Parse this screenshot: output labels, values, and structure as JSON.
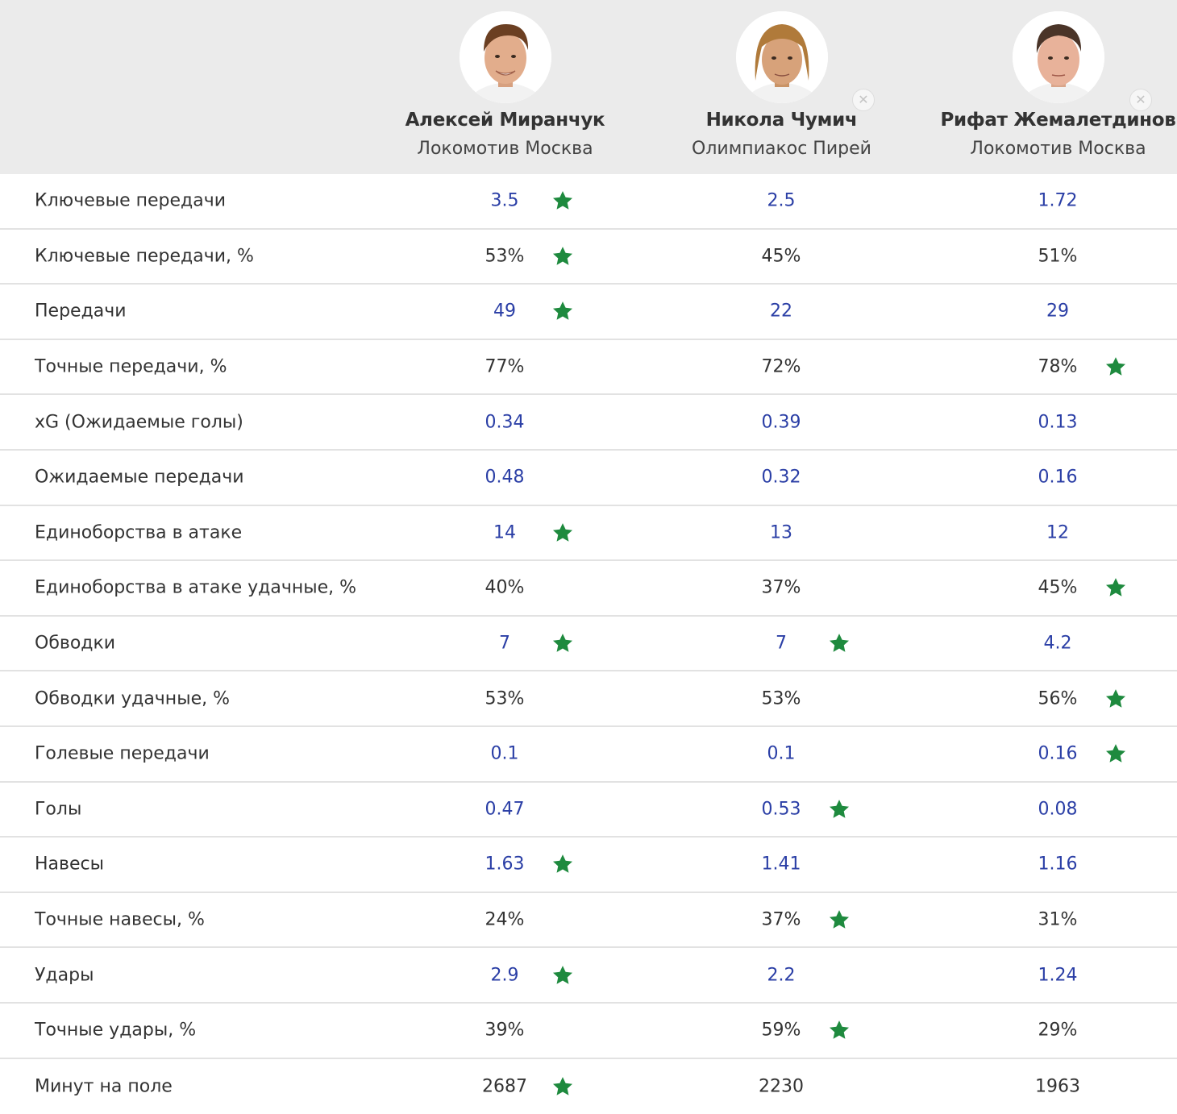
{
  "players": [
    {
      "name": "Алексей Миранчук",
      "team": "Локомотив Москва",
      "removable": false
    },
    {
      "name": "Никола Чумич",
      "team": "Олимпиакос Пирей",
      "removable": true
    },
    {
      "name": "Рифат Жемалетдинов",
      "team": "Локомотив Москва",
      "removable": true
    }
  ],
  "remove_icon_glyph": "✕",
  "colors": {
    "header_bg": "#ebebeb",
    "number_blue": "#2b3fa6",
    "star_green": "#1e8a3e",
    "divider": "#e2e2e2"
  },
  "rows": [
    {
      "label": "Ключевые передачи",
      "kind": "num",
      "values": [
        "3.5",
        "2.5",
        "1.72"
      ],
      "stars": [
        true,
        false,
        false
      ]
    },
    {
      "label": "Ключевые передачи, %",
      "kind": "pct",
      "values": [
        "53%",
        "45%",
        "51%"
      ],
      "stars": [
        true,
        false,
        false
      ]
    },
    {
      "label": "Передачи",
      "kind": "num",
      "values": [
        "49",
        "22",
        "29"
      ],
      "stars": [
        true,
        false,
        false
      ]
    },
    {
      "label": "Точные передачи, %",
      "kind": "pct",
      "values": [
        "77%",
        "72%",
        "78%"
      ],
      "stars": [
        false,
        false,
        true
      ]
    },
    {
      "label": "xG (Ожидаемые голы)",
      "kind": "num",
      "values": [
        "0.34",
        "0.39",
        "0.13"
      ],
      "stars": [
        false,
        false,
        false
      ]
    },
    {
      "label": "Ожидаемые передачи",
      "kind": "num",
      "values": [
        "0.48",
        "0.32",
        "0.16"
      ],
      "stars": [
        false,
        false,
        false
      ]
    },
    {
      "label": "Единоборства в атаке",
      "kind": "num",
      "values": [
        "14",
        "13",
        "12"
      ],
      "stars": [
        true,
        false,
        false
      ]
    },
    {
      "label": "Единоборства в атаке удачные, %",
      "kind": "pct",
      "values": [
        "40%",
        "37%",
        "45%"
      ],
      "stars": [
        false,
        false,
        true
      ]
    },
    {
      "label": "Обводки",
      "kind": "num",
      "values": [
        "7",
        "7",
        "4.2"
      ],
      "stars": [
        true,
        true,
        false
      ]
    },
    {
      "label": "Обводки удачные, %",
      "kind": "pct",
      "values": [
        "53%",
        "53%",
        "56%"
      ],
      "stars": [
        false,
        false,
        true
      ]
    },
    {
      "label": "Голевые передачи",
      "kind": "num",
      "values": [
        "0.1",
        "0.1",
        "0.16"
      ],
      "stars": [
        false,
        false,
        true
      ]
    },
    {
      "label": "Голы",
      "kind": "num",
      "values": [
        "0.47",
        "0.53",
        "0.08"
      ],
      "stars": [
        false,
        true,
        false
      ]
    },
    {
      "label": "Навесы",
      "kind": "num",
      "values": [
        "1.63",
        "1.41",
        "1.16"
      ],
      "stars": [
        true,
        false,
        false
      ]
    },
    {
      "label": "Точные навесы, %",
      "kind": "pct",
      "values": [
        "24%",
        "37%",
        "31%"
      ],
      "stars": [
        false,
        true,
        false
      ]
    },
    {
      "label": "Удары",
      "kind": "num",
      "values": [
        "2.9",
        "2.2",
        "1.24"
      ],
      "stars": [
        true,
        false,
        false
      ]
    },
    {
      "label": "Точные удары, %",
      "kind": "pct",
      "values": [
        "39%",
        "59%",
        "29%"
      ],
      "stars": [
        false,
        true,
        false
      ]
    },
    {
      "label": "Минут на поле",
      "kind": "pct",
      "values": [
        "2687",
        "2230",
        "1963"
      ],
      "stars": [
        true,
        false,
        false
      ]
    }
  ]
}
